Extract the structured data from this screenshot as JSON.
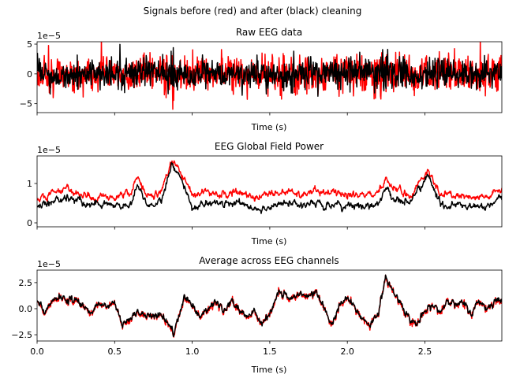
{
  "suptitle": "Signals before (red) and after (black) cleaning",
  "colors": {
    "before": "#ff0000",
    "after": "#000000"
  },
  "chart_data": [
    {
      "type": "line",
      "title": "Raw EEG data",
      "xlabel": "Time (s)",
      "offset_text": "1e−5",
      "xlim": [
        0,
        2.996
      ],
      "ylim": [
        -6.5,
        5.4
      ],
      "yticks": [
        5,
        0,
        -5
      ],
      "ytick_labels": [
        "5",
        "0",
        "−5"
      ],
      "xticks": [
        0,
        0.5,
        1,
        1.5,
        2,
        2.5
      ],
      "xtick_labels": [],
      "envelope_t": [
        0,
        0.2,
        0.4,
        0.5,
        0.52,
        0.7,
        0.85,
        0.88,
        0.9,
        1.0,
        1.2,
        1.5,
        1.55,
        1.8,
        2.0,
        2.2,
        2.24,
        2.3,
        2.5,
        2.7,
        2.996
      ],
      "series": [
        {
          "name": "before",
          "amplitude": [
            3,
            3.2,
            2.8,
            2.8,
            2.5,
            2.5,
            3,
            5,
            3,
            2.8,
            2.5,
            2.6,
            3.2,
            2.8,
            3.5,
            3.5,
            4,
            3,
            2.8,
            2.8,
            3
          ]
        },
        {
          "name": "after",
          "amplitude": [
            2,
            2,
            2,
            2,
            2.6,
            2,
            2.4,
            4.5,
            2.4,
            2,
            2,
            2,
            2,
            2.3,
            2.4,
            2.6,
            4,
            2.6,
            2,
            2,
            2
          ]
        }
      ]
    },
    {
      "type": "line",
      "title": "EEG Global Field Power",
      "xlabel": "Time (s)",
      "offset_text": "1e−5",
      "xlim": [
        0,
        2.996
      ],
      "ylim": [
        -0.1,
        1.7
      ],
      "yticks": [
        1,
        0
      ],
      "ytick_labels": [
        "1",
        "0"
      ],
      "xticks": [
        0,
        0.5,
        1,
        1.5,
        2,
        2.5
      ],
      "xtick_labels": [],
      "t": [
        0,
        0.1,
        0.2,
        0.3,
        0.4,
        0.5,
        0.6,
        0.65,
        0.7,
        0.8,
        0.87,
        0.95,
        1.0,
        1.1,
        1.2,
        1.3,
        1.4,
        1.5,
        1.6,
        1.7,
        1.8,
        1.9,
        2.0,
        2.1,
        2.2,
        2.25,
        2.3,
        2.4,
        2.52,
        2.6,
        2.7,
        2.8,
        2.9,
        2.996
      ],
      "series": [
        {
          "name": "before",
          "values": [
            0.5,
            0.8,
            0.85,
            0.7,
            0.65,
            0.7,
            0.7,
            1.2,
            0.7,
            0.8,
            1.6,
            1.1,
            0.7,
            0.8,
            0.7,
            0.75,
            0.6,
            0.75,
            0.8,
            0.7,
            0.8,
            0.75,
            0.7,
            0.7,
            0.75,
            1.1,
            0.9,
            0.7,
            1.3,
            0.7,
            0.7,
            0.6,
            0.65,
            0.85
          ]
        },
        {
          "name": "after",
          "values": [
            0.4,
            0.55,
            0.65,
            0.5,
            0.45,
            0.45,
            0.45,
            1.0,
            0.5,
            0.5,
            1.5,
            0.9,
            0.4,
            0.5,
            0.5,
            0.5,
            0.35,
            0.4,
            0.5,
            0.45,
            0.5,
            0.4,
            0.45,
            0.4,
            0.5,
            0.9,
            0.6,
            0.5,
            1.2,
            0.45,
            0.45,
            0.4,
            0.4,
            0.6
          ]
        }
      ]
    },
    {
      "type": "line",
      "title": "Average across EEG channels",
      "xlabel": "Time (s)",
      "offset_text": "1e−5",
      "xlim": [
        0,
        2.996
      ],
      "ylim": [
        -3.1,
        3.7
      ],
      "yticks": [
        2.5,
        0,
        -2.5
      ],
      "ytick_labels": [
        "2.5",
        "0.0",
        "−2.5"
      ],
      "xticks": [
        0,
        0.5,
        1,
        1.5,
        2,
        2.5
      ],
      "xtick_labels": [
        "0.0",
        "0.5",
        "1.0",
        "1.5",
        "2.0",
        "2.5"
      ],
      "t": [
        0,
        0.05,
        0.1,
        0.15,
        0.2,
        0.25,
        0.3,
        0.35,
        0.4,
        0.45,
        0.5,
        0.55,
        0.6,
        0.65,
        0.7,
        0.75,
        0.8,
        0.85,
        0.88,
        0.9,
        0.95,
        1.0,
        1.05,
        1.1,
        1.15,
        1.2,
        1.25,
        1.3,
        1.35,
        1.4,
        1.45,
        1.5,
        1.55,
        1.6,
        1.65,
        1.7,
        1.75,
        1.8,
        1.85,
        1.9,
        1.95,
        2.0,
        2.05,
        2.1,
        2.15,
        2.2,
        2.25,
        2.3,
        2.35,
        2.4,
        2.45,
        2.5,
        2.55,
        2.6,
        2.65,
        2.7,
        2.75,
        2.8,
        2.85,
        2.9,
        2.95
      ],
      "series": [
        {
          "name": "after",
          "values": [
            1.0,
            -0.3,
            0.8,
            1.0,
            0.7,
            1.0,
            0.3,
            -0.5,
            0.5,
            0.3,
            0.5,
            -1.5,
            -1.0,
            -0.3,
            -0.7,
            -0.5,
            -0.8,
            -1.5,
            -2.5,
            -1.5,
            1.0,
            0.5,
            -0.8,
            0.2,
            0.8,
            -0.3,
            0.8,
            0.0,
            -0.8,
            -0.3,
            -1.5,
            -0.5,
            1.5,
            1.3,
            1.0,
            1.5,
            1.3,
            1.5,
            0.0,
            -1.5,
            0.3,
            1.0,
            0.0,
            -1.0,
            -1.5,
            -0.3,
            3.0,
            1.5,
            0.5,
            -1.0,
            -1.5,
            -0.3,
            0.3,
            -0.3,
            1.0,
            0.3,
            0.5,
            -0.5,
            0.8,
            0.0,
            0.8
          ]
        }
      ]
    }
  ]
}
